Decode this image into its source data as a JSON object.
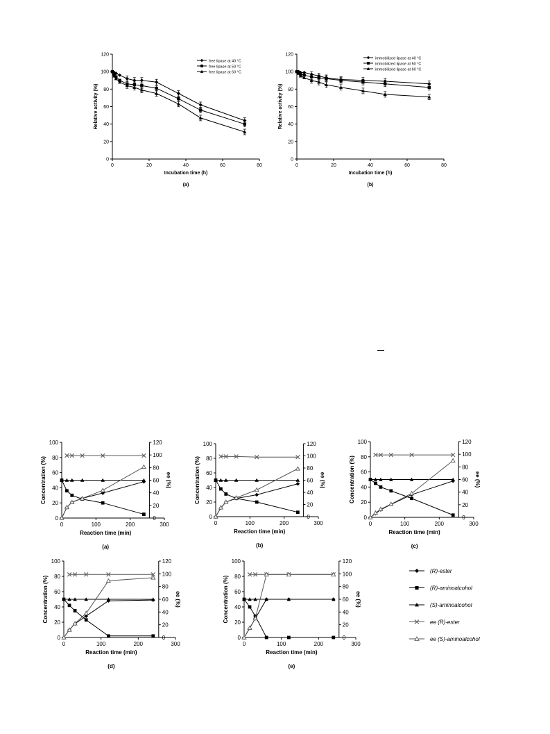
{
  "figure_top": {
    "panels": [
      {
        "caption": "(a)",
        "ylabel": "Relative activity (%)",
        "xlabel": "Incubation time (h)",
        "legend": [
          "free lipase at 40 °C",
          "free lipase at 50 °C",
          "free lipase at 60 °C"
        ],
        "x_ticks": [
          "0",
          "20",
          "40",
          "60",
          "80"
        ],
        "y_ticks": [
          "0",
          "20",
          "40",
          "60",
          "80",
          "100",
          "120"
        ]
      },
      {
        "caption": "(b)",
        "ylabel": "Relative activity (%)",
        "xlabel": "Incubation time (h)",
        "legend": [
          "immobilized lipase at 40 °C",
          "immobilized lipase at 50 °C",
          "immobilized lipase at 60 °C"
        ],
        "x_ticks": [
          "0",
          "20",
          "40",
          "60",
          "80"
        ],
        "y_ticks": [
          "0",
          "20",
          "40",
          "60",
          "80",
          "100",
          "120"
        ]
      }
    ]
  },
  "figure_bottom": {
    "ylabel_left": "Concentration (%)",
    "ylabel_right": "ee (%)",
    "xlabel": "Reaction time (min)",
    "captions": [
      "(a)",
      "(b)",
      "(c)",
      "(d)",
      "(e)"
    ],
    "x_ticks": [
      "0",
      "100",
      "200",
      "300"
    ],
    "y_ticks_left": [
      "0",
      "20",
      "40",
      "60",
      "80",
      "100"
    ],
    "y_ticks_right": [
      "0",
      "20",
      "40",
      "60",
      "80",
      "100",
      "120"
    ],
    "legend": [
      "(R)-ester",
      "(R)-aminoalcohol",
      "(S)-aminoalcohol",
      "ee (R)-ester",
      "ee (S)-aminoalcohol"
    ]
  },
  "chart_data": [
    {
      "type": "line",
      "panel": "top-a",
      "xlim": [
        0,
        80
      ],
      "ylim": [
        0,
        120
      ],
      "series": [
        {
          "name": "free lipase at 40 °C",
          "marker": "diamond",
          "x": [
            0,
            1,
            2,
            4,
            8,
            12,
            16,
            24,
            36,
            48,
            72
          ],
          "y": [
            100,
            99,
            98,
            96,
            92,
            90,
            90,
            88,
            75,
            62,
            44
          ]
        },
        {
          "name": "free lipase at 50 °C",
          "marker": "square",
          "x": [
            0,
            1,
            2,
            4,
            8,
            12,
            16,
            24,
            36,
            48,
            72
          ],
          "y": [
            100,
            97,
            94,
            90,
            86,
            85,
            84,
            81,
            69,
            56,
            40
          ]
        },
        {
          "name": "free lipase at 60 °C",
          "marker": "triangle",
          "x": [
            0,
            1,
            2,
            4,
            8,
            12,
            16,
            24,
            36,
            48,
            72
          ],
          "y": [
            100,
            95,
            92,
            88,
            84,
            82,
            79,
            75,
            63,
            47,
            31
          ]
        }
      ]
    },
    {
      "type": "line",
      "panel": "top-b",
      "xlim": [
        0,
        80
      ],
      "ylim": [
        0,
        120
      ],
      "series": [
        {
          "name": "immobilized lipase at 40 °C",
          "marker": "diamond",
          "x": [
            0,
            1,
            2,
            4,
            8,
            12,
            16,
            24,
            36,
            48,
            72
          ],
          "y": [
            100,
            100,
            99,
            99,
            97,
            95,
            93,
            91,
            90,
            89,
            86
          ]
        },
        {
          "name": "immobilized lipase at 50 °C",
          "marker": "square",
          "x": [
            0,
            1,
            2,
            4,
            8,
            12,
            16,
            24,
            36,
            48,
            72
          ],
          "y": [
            100,
            99,
            97,
            96,
            94,
            93,
            92,
            90,
            88,
            86,
            82
          ]
        },
        {
          "name": "immobilized lipase at 60 °C",
          "marker": "triangle",
          "x": [
            0,
            1,
            2,
            4,
            8,
            12,
            16,
            24,
            36,
            48,
            72
          ],
          "y": [
            100,
            98,
            95,
            93,
            90,
            88,
            85,
            82,
            78,
            74,
            71
          ]
        }
      ]
    },
    {
      "type": "line",
      "panel": "bottom-a",
      "xlim": [
        0,
        300
      ],
      "ylim": [
        0,
        100
      ],
      "y2lim": [
        0,
        120
      ],
      "series": [
        {
          "name": "(R)-ester",
          "marker": "diamond",
          "axis": "left",
          "x": [
            0,
            15,
            30,
            60,
            120,
            240
          ],
          "y": [
            0,
            14,
            21,
            26,
            33,
            48
          ]
        },
        {
          "name": "(R)-aminoalcohol",
          "marker": "square",
          "axis": "left",
          "x": [
            0,
            15,
            30,
            60,
            120,
            240
          ],
          "y": [
            50,
            36,
            30,
            25,
            20,
            5
          ]
        },
        {
          "name": "(S)-aminoalcohol",
          "marker": "triangle",
          "axis": "left",
          "x": [
            0,
            15,
            30,
            60,
            120,
            240
          ],
          "y": [
            50,
            50,
            50,
            50,
            50,
            50
          ]
        },
        {
          "name": "ee (R)-ester",
          "marker": "x",
          "axis": "right",
          "x": [
            15,
            30,
            60,
            120,
            240
          ],
          "y": [
            99,
            99,
            99,
            99,
            99
          ]
        },
        {
          "name": "ee (S)-aminoalcohol",
          "marker": "open-triangle",
          "axis": "right",
          "x": [
            0,
            15,
            30,
            60,
            120,
            240
          ],
          "y": [
            0,
            17,
            25,
            31,
            44,
            81
          ]
        }
      ]
    },
    {
      "type": "line",
      "panel": "bottom-b",
      "xlim": [
        0,
        300
      ],
      "ylim": [
        0,
        100
      ],
      "y2lim": [
        0,
        120
      ],
      "series": [
        {
          "name": "(R)-ester",
          "marker": "diamond",
          "axis": "left",
          "x": [
            0,
            15,
            30,
            60,
            120,
            240
          ],
          "y": [
            0,
            12,
            20,
            25,
            30,
            45
          ]
        },
        {
          "name": "(R)-aminoalcohol",
          "marker": "square",
          "axis": "left",
          "x": [
            0,
            15,
            30,
            60,
            120,
            240
          ],
          "y": [
            50,
            38,
            31,
            25,
            20,
            6
          ]
        },
        {
          "name": "(S)-aminoalcohol",
          "marker": "triangle",
          "axis": "left",
          "x": [
            0,
            15,
            30,
            60,
            120,
            240
          ],
          "y": [
            50,
            50,
            50,
            50,
            50,
            50
          ]
        },
        {
          "name": "ee (R)-ester",
          "marker": "x",
          "axis": "right",
          "x": [
            15,
            30,
            60,
            120,
            240
          ],
          "y": [
            99,
            99,
            99,
            98,
            98
          ]
        },
        {
          "name": "ee (S)-aminoalcohol",
          "marker": "open-triangle",
          "axis": "right",
          "x": [
            0,
            15,
            30,
            60,
            120,
            240
          ],
          "y": [
            0,
            15,
            24,
            31,
            44,
            79
          ]
        }
      ]
    },
    {
      "type": "line",
      "panel": "bottom-c",
      "xlim": [
        0,
        300
      ],
      "ylim": [
        0,
        100
      ],
      "y2lim": [
        0,
        120
      ],
      "series": [
        {
          "name": "(R)-ester",
          "marker": "diamond",
          "axis": "left",
          "x": [
            0,
            15,
            30,
            60,
            120,
            240
          ],
          "y": [
            0,
            5,
            10,
            17,
            30,
            48
          ]
        },
        {
          "name": "(R)-aminoalcohol",
          "marker": "square",
          "axis": "left",
          "x": [
            0,
            15,
            30,
            60,
            120,
            240
          ],
          "y": [
            50,
            45,
            40,
            35,
            25,
            3
          ]
        },
        {
          "name": "(S)-aminoalcohol",
          "marker": "triangle",
          "axis": "left",
          "x": [
            0,
            15,
            30,
            60,
            120,
            240
          ],
          "y": [
            50,
            50,
            50,
            50,
            50,
            50
          ]
        },
        {
          "name": "ee (R)-ester",
          "marker": "x",
          "axis": "right",
          "x": [
            15,
            30,
            60,
            120,
            240
          ],
          "y": [
            99,
            99,
            99,
            99,
            99
          ]
        },
        {
          "name": "ee (S)-aminoalcohol",
          "marker": "open-triangle",
          "axis": "right",
          "x": [
            0,
            15,
            30,
            60,
            120,
            240
          ],
          "y": [
            0,
            7,
            13,
            21,
            38,
            90
          ]
        }
      ]
    },
    {
      "type": "line",
      "panel": "bottom-d",
      "xlim": [
        0,
        300
      ],
      "ylim": [
        0,
        100
      ],
      "y2lim": [
        0,
        120
      ],
      "series": [
        {
          "name": "(R)-ester",
          "marker": "diamond",
          "axis": "left",
          "x": [
            0,
            15,
            30,
            60,
            120,
            240
          ],
          "y": [
            0,
            10,
            18,
            28,
            48,
            49
          ]
        },
        {
          "name": "(R)-aminoalcohol",
          "marker": "square",
          "axis": "left",
          "x": [
            0,
            15,
            30,
            60,
            120,
            240
          ],
          "y": [
            50,
            42,
            35,
            23,
            2,
            2
          ]
        },
        {
          "name": "(S)-aminoalcohol",
          "marker": "triangle",
          "axis": "left",
          "x": [
            0,
            15,
            30,
            60,
            120,
            240
          ],
          "y": [
            50,
            50,
            50,
            50,
            50,
            50
          ]
        },
        {
          "name": "ee (R)-ester",
          "marker": "x",
          "axis": "right",
          "x": [
            15,
            30,
            60,
            120,
            240
          ],
          "y": [
            99,
            99,
            99,
            99,
            99
          ]
        },
        {
          "name": "ee (S)-aminoalcohol",
          "marker": "open-triangle",
          "axis": "right",
          "x": [
            0,
            15,
            30,
            60,
            120,
            240
          ],
          "y": [
            0,
            12,
            22,
            38,
            89,
            94
          ]
        }
      ]
    },
    {
      "type": "line",
      "panel": "bottom-e",
      "xlim": [
        0,
        300
      ],
      "ylim": [
        0,
        100
      ],
      "y2lim": [
        0,
        120
      ],
      "series": [
        {
          "name": "(R)-ester",
          "marker": "diamond",
          "axis": "left",
          "x": [
            0,
            15,
            30,
            60,
            120,
            240
          ],
          "y": [
            0,
            12,
            25,
            50,
            50,
            50
          ]
        },
        {
          "name": "(R)-aminoalcohol",
          "marker": "square",
          "axis": "left",
          "x": [
            0,
            15,
            30,
            60,
            120,
            240
          ],
          "y": [
            50,
            40,
            28,
            0,
            0,
            0
          ]
        },
        {
          "name": "(S)-aminoalcohol",
          "marker": "triangle",
          "axis": "left",
          "x": [
            0,
            15,
            30,
            60,
            120,
            240
          ],
          "y": [
            50,
            50,
            50,
            50,
            50,
            50
          ]
        },
        {
          "name": "ee (R)-ester",
          "marker": "x",
          "axis": "right",
          "x": [
            15,
            30,
            60,
            120,
            240
          ],
          "y": [
            99,
            99,
            99,
            99,
            99
          ]
        },
        {
          "name": "ee (S)-aminoalcohol",
          "marker": "open-triangle",
          "axis": "right",
          "x": [
            0,
            15,
            30,
            60,
            120,
            240
          ],
          "y": [
            0,
            15,
            30,
            99,
            99,
            99
          ]
        }
      ]
    }
  ]
}
